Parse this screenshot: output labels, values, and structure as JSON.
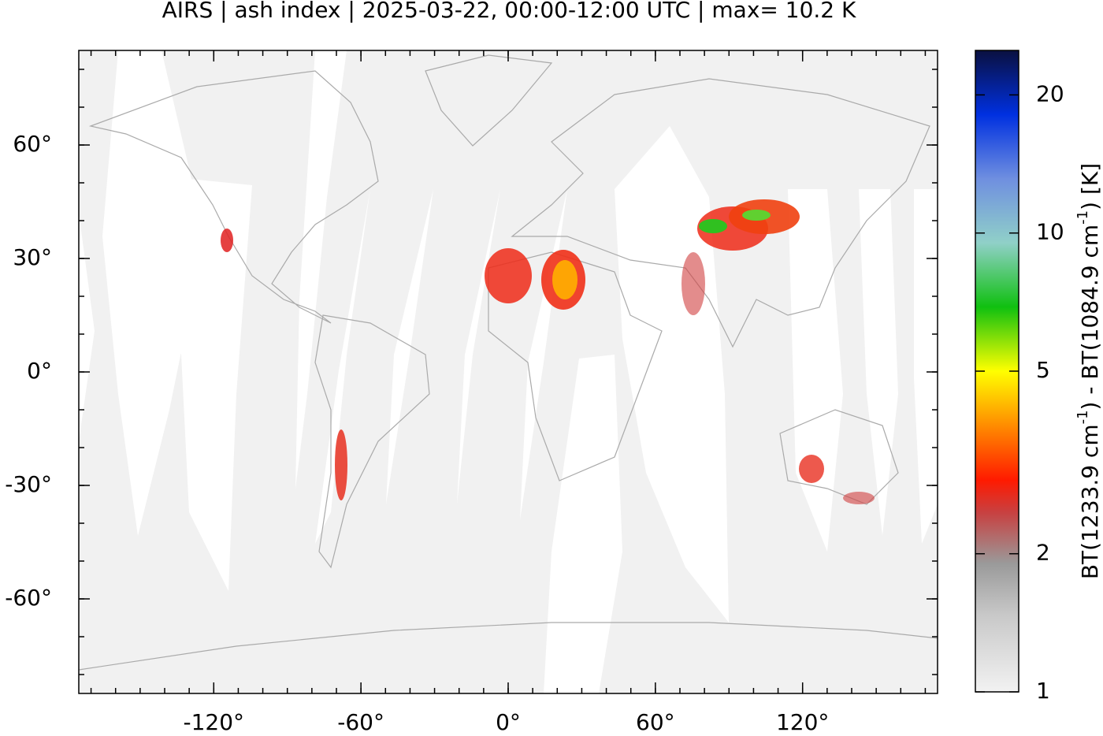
{
  "chart_data": {
    "type": "map",
    "title": "AIRS | ash index | 2025-03-22, 00:00-12:00 UTC | max= 10.2 K",
    "xlim": [
      -175,
      175
    ],
    "ylim": [
      -85,
      85
    ],
    "xticks": [
      {
        "value": -120,
        "label": "-120°"
      },
      {
        "value": -60,
        "label": "-60°"
      },
      {
        "value": 0,
        "label": "0°"
      },
      {
        "value": 60,
        "label": "60°"
      },
      {
        "value": 120,
        "label": "120°"
      }
    ],
    "yticks": [
      {
        "value": 60,
        "label": "60°"
      },
      {
        "value": 30,
        "label": "30°"
      },
      {
        "value": 0,
        "label": "0°"
      },
      {
        "value": -30,
        "label": "-30°"
      },
      {
        "value": -60,
        "label": "-60°"
      }
    ],
    "colorbar": {
      "lim": [
        1,
        25
      ],
      "log": true,
      "ticks": [
        1,
        2,
        5,
        10,
        20
      ],
      "label": [
        "BT(1233.9 cm",
        "-1",
        ") - BT(1084.9 cm",
        "-1",
        ") [K]"
      ]
    }
  }
}
